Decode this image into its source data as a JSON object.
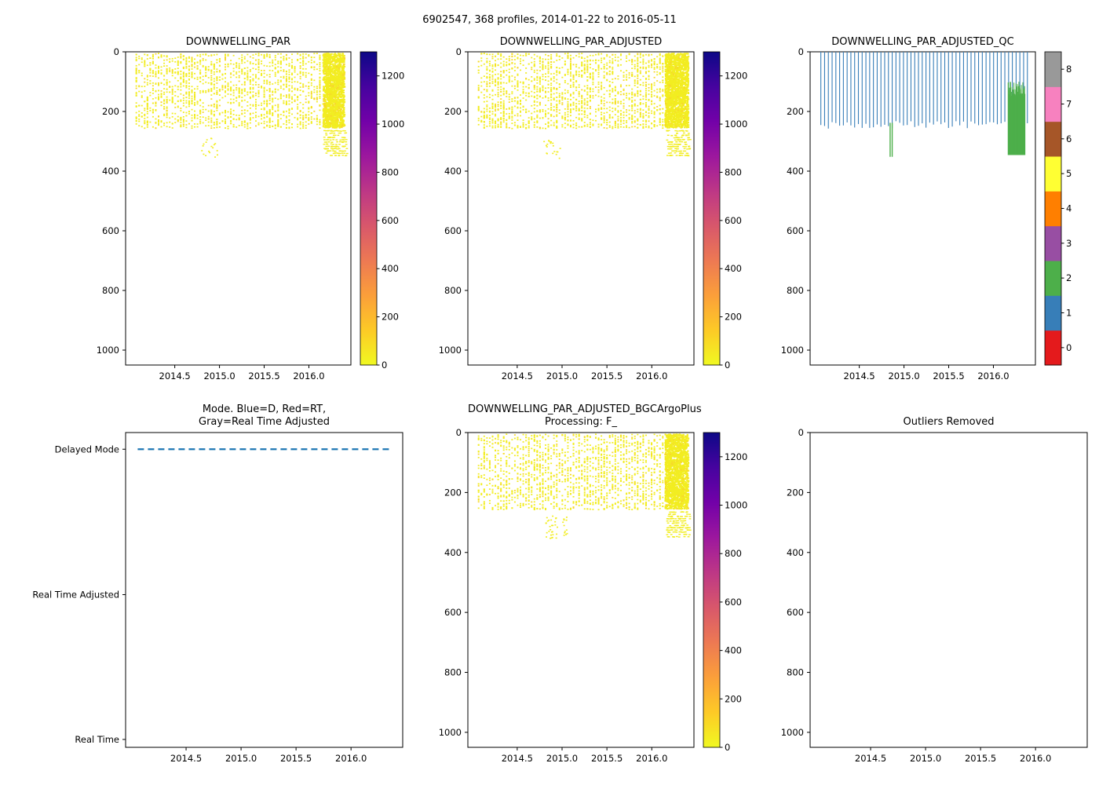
{
  "figure": {
    "title": "6902547, 368 profiles, 2014-01-22 to 2016-05-11",
    "background": "#ffffff"
  },
  "palette": {
    "plasma_r": [
      "#0d0887",
      "#46039f",
      "#7201a8",
      "#9c179e",
      "#bd3786",
      "#d8576b",
      "#ed7953",
      "#fb9f3a",
      "#fdca26",
      "#f0f921"
    ],
    "qc_colors": [
      "#e41a1c",
      "#377eb8",
      "#4daf4a",
      "#984ea3",
      "#ff7f00",
      "#ffff33",
      "#a65628",
      "#f781bf",
      "#999999"
    ],
    "dot_yellow": "#f2ed21",
    "dot_yellow2": "#f8d62b",
    "mode_line_blue": "#1f77b4",
    "qc_blue": "#377eb8",
    "qc_green": "#4daf4a",
    "axis_color": "#000000"
  },
  "chart_data": [
    {
      "id": "par",
      "type": "scatter",
      "title": "DOWNWELLING_PAR",
      "x_domain": [
        2013.95,
        2016.47
      ],
      "x_ticks": [
        2014.5,
        2015.0,
        2015.5,
        2016.0
      ],
      "y_domain": [
        0,
        1050
      ],
      "y_ticks": [
        0,
        200,
        400,
        600,
        800,
        1000
      ],
      "seed": 7,
      "colorbar": {
        "type": "gradient",
        "domain": [
          0,
          1300
        ],
        "ticks": [
          0,
          200,
          400,
          600,
          800,
          1000,
          1200
        ]
      },
      "regions": [
        {
          "kind": "columns",
          "x0": 2014.07,
          "x1": 2016.15,
          "dx": 0.0311,
          "d0": 3,
          "d1": 255,
          "nmin": 14,
          "nmax": 40
        },
        {
          "kind": "dense",
          "x0": 2016.16,
          "x1": 2016.4,
          "d0": 3,
          "d1": 252,
          "count": 1500
        },
        {
          "kind": "dash_rows",
          "x0": 2016.17,
          "x1": 2016.43,
          "d0": 262,
          "d1": 352,
          "rows": 12,
          "count": 130
        },
        {
          "kind": "sparse",
          "x0": 2014.8,
          "x1": 2014.98,
          "d0": 285,
          "d1": 355,
          "count": 18
        }
      ]
    },
    {
      "id": "adj",
      "type": "scatter",
      "title": "DOWNWELLING_PAR_ADJUSTED",
      "x_domain": [
        2013.95,
        2016.47
      ],
      "x_ticks": [
        2014.5,
        2015.0,
        2015.5,
        2016.0
      ],
      "y_domain": [
        0,
        1050
      ],
      "y_ticks": [
        0,
        200,
        400,
        600,
        800,
        1000
      ],
      "seed": 19,
      "colorbar": {
        "type": "gradient",
        "domain": [
          0,
          1300
        ],
        "ticks": [
          0,
          200,
          400,
          600,
          800,
          1000,
          1200
        ]
      },
      "regions": [
        {
          "kind": "columns",
          "x0": 2014.07,
          "x1": 2016.15,
          "dx": 0.0311,
          "d0": 3,
          "d1": 255,
          "nmin": 14,
          "nmax": 42
        },
        {
          "kind": "dense",
          "x0": 2016.15,
          "x1": 2016.41,
          "d0": 3,
          "d1": 252,
          "count": 1700
        },
        {
          "kind": "dash_rows",
          "x0": 2016.17,
          "x1": 2016.43,
          "d0": 262,
          "d1": 352,
          "rows": 12,
          "count": 140
        },
        {
          "kind": "sparse",
          "x0": 2014.8,
          "x1": 2014.98,
          "d0": 285,
          "d1": 355,
          "count": 20
        }
      ]
    },
    {
      "id": "qc",
      "type": "qc",
      "title": "DOWNWELLING_PAR_ADJUSTED_QC",
      "x_domain": [
        2013.95,
        2016.47
      ],
      "x_ticks": [
        2014.5,
        2015.0,
        2015.5,
        2016.0
      ],
      "y_domain": [
        0,
        1050
      ],
      "y_ticks": [
        0,
        200,
        400,
        600,
        800,
        1000
      ],
      "seed": 3,
      "colorbar": {
        "type": "discrete",
        "labels": [
          0,
          1,
          2,
          3,
          4,
          5,
          6,
          7,
          8
        ]
      },
      "lines": {
        "x0": 2014.07,
        "x1": 2016.42,
        "dx": 0.042,
        "d0": 0,
        "d1": 250,
        "green_spikes": [
          {
            "x": 2014.845,
            "d0": 238,
            "d1": 352
          },
          {
            "x": 2014.868,
            "d0": 238,
            "d1": 352
          }
        ],
        "green_block": {
          "x0": 2016.165,
          "x1": 2016.355,
          "top_min": 100,
          "top_max": 150,
          "d1": 346
        }
      }
    },
    {
      "id": "mode",
      "type": "mode",
      "title_lines": [
        "Mode. Blue=D, Red=RT,",
        "Gray=Real Time Adjusted"
      ],
      "x_domain": [
        2013.95,
        2016.47
      ],
      "x_ticks": [
        2014.5,
        2015.0,
        2015.5,
        2016.0
      ],
      "y_categories": [
        "Delayed Mode",
        "Real Time Adjusted",
        "Real Time"
      ],
      "line": {
        "category": "Delayed Mode",
        "x0": 2014.06,
        "x1": 2016.38,
        "style": "dashed"
      }
    },
    {
      "id": "bgc",
      "type": "scatter",
      "title_lines": [
        "DOWNWELLING_PAR_ADJUSTED_BGCArgoPlus",
        "Processing: F_"
      ],
      "x_domain": [
        2013.95,
        2016.47
      ],
      "x_ticks": [
        2014.5,
        2015.0,
        2015.5,
        2016.0
      ],
      "y_domain": [
        0,
        1050
      ],
      "y_ticks": [
        0,
        200,
        400,
        600,
        800,
        1000
      ],
      "seed": 41,
      "colorbar": {
        "type": "gradient",
        "domain": [
          0,
          1300
        ],
        "ticks": [
          0,
          200,
          400,
          600,
          800,
          1000,
          1200
        ]
      },
      "regions": [
        {
          "kind": "columns",
          "x0": 2014.07,
          "x1": 2016.15,
          "dx": 0.0311,
          "d0": 3,
          "d1": 255,
          "nmin": 14,
          "nmax": 40
        },
        {
          "kind": "dense",
          "x0": 2016.15,
          "x1": 2016.41,
          "d0": 3,
          "d1": 252,
          "count": 1600
        },
        {
          "kind": "dash_rows",
          "x0": 2016.17,
          "x1": 2016.43,
          "d0": 262,
          "d1": 352,
          "rows": 12,
          "count": 140
        },
        {
          "kind": "sparse",
          "x0": 2014.82,
          "x1": 2014.95,
          "d0": 270,
          "d1": 355,
          "count": 28
        },
        {
          "kind": "sparse",
          "x0": 2015.0,
          "x1": 2015.06,
          "d0": 280,
          "d1": 345,
          "count": 12
        }
      ]
    },
    {
      "id": "outliers",
      "type": "empty",
      "title": "Outliers Removed",
      "x_domain": [
        2013.95,
        2016.47
      ],
      "x_ticks": [
        2014.5,
        2015.0,
        2015.5,
        2016.0
      ],
      "y_domain": [
        0,
        1050
      ],
      "y_ticks": [
        0,
        200,
        400,
        600,
        800,
        1000
      ]
    }
  ]
}
